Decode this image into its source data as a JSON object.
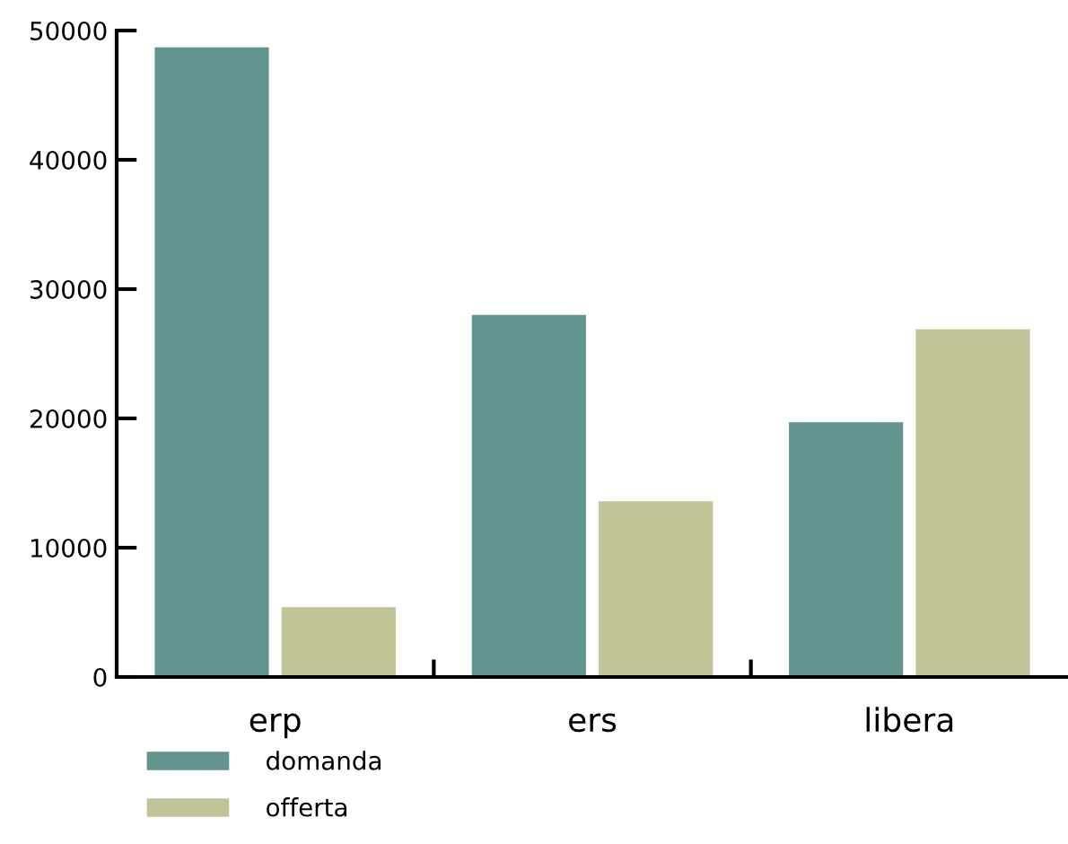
{
  "chart_data": {
    "type": "bar",
    "categories": [
      "erp",
      "ers",
      "libera"
    ],
    "series": [
      {
        "name": "domanda",
        "color": "#62958f",
        "values": [
          48700,
          28000,
          19700
        ]
      },
      {
        "name": "offerta",
        "color": "#c1c496",
        "values": [
          5400,
          13600,
          26900
        ]
      }
    ],
    "ylim": [
      0,
      50000
    ],
    "yticks": [
      0,
      10000,
      20000,
      30000,
      40000,
      50000
    ],
    "grid": false,
    "legend": "bottom left"
  }
}
